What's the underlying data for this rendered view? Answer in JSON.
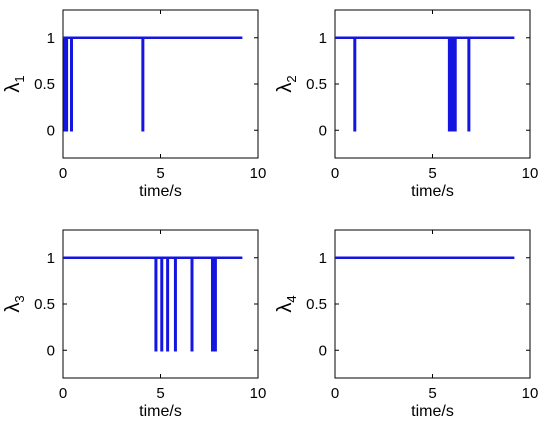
{
  "chart_data": [
    {
      "type": "line",
      "ylabel": "λ",
      "ylabel_sub": "1",
      "xlabel": "time/s",
      "xlim": [
        0,
        10
      ],
      "ylim": [
        -0.3,
        1.3
      ],
      "xticks": [
        "0",
        "5",
        "10"
      ],
      "yticks": [
        "0",
        "0.5",
        "1"
      ],
      "series_color": "#1515e0",
      "duration": 9.2,
      "drops": [
        0.08,
        0.17,
        0.42,
        4.08
      ]
    },
    {
      "type": "line",
      "ylabel": "λ",
      "ylabel_sub": "2",
      "xlabel": "time/s",
      "xlim": [
        0,
        10
      ],
      "ylim": [
        -0.3,
        1.3
      ],
      "xticks": [
        "0",
        "5",
        "10"
      ],
      "yticks": [
        "0",
        "0.5",
        "1"
      ],
      "series_color": "#1515e0",
      "duration": 9.2,
      "drops": [
        1.0,
        5.85,
        6.0,
        6.15,
        6.85
      ]
    },
    {
      "type": "line",
      "ylabel": "λ",
      "ylabel_sub": "3",
      "xlabel": "time/s",
      "xlim": [
        0,
        10
      ],
      "ylim": [
        -0.3,
        1.3
      ],
      "xticks": [
        "0",
        "5",
        "10"
      ],
      "yticks": [
        "0",
        "0.5",
        "1"
      ],
      "series_color": "#1515e0",
      "duration": 9.2,
      "drops": [
        4.75,
        5.05,
        5.35,
        5.75,
        6.6,
        7.65,
        7.8
      ]
    },
    {
      "type": "line",
      "ylabel": "λ",
      "ylabel_sub": "4",
      "xlabel": "time/s",
      "xlim": [
        0,
        10
      ],
      "ylim": [
        -0.3,
        1.3
      ],
      "xticks": [
        "0",
        "5",
        "10"
      ],
      "yticks": [
        "0",
        "0.5",
        "1"
      ],
      "series_color": "#1515e0",
      "duration": 9.2,
      "drops": []
    }
  ]
}
